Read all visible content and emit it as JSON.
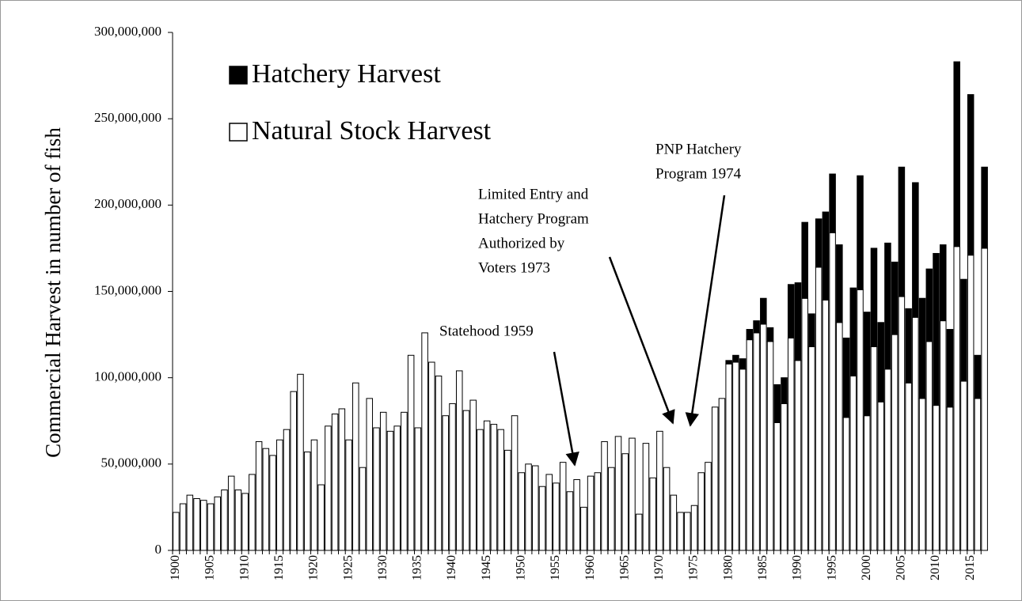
{
  "chart_data": {
    "type": "stacked_bar",
    "y_label": "Commercial  Harvest  in number of fish",
    "categories": [
      "1900",
      null,
      null,
      null,
      null,
      "1905",
      null,
      null,
      null,
      null,
      "1910",
      null,
      null,
      null,
      null,
      "1915",
      null,
      null,
      null,
      null,
      "1920",
      null,
      null,
      null,
      null,
      "1925",
      null,
      null,
      null,
      null,
      "1930",
      null,
      null,
      null,
      null,
      "1935",
      null,
      null,
      null,
      null,
      "1940",
      null,
      null,
      null,
      null,
      "1945",
      null,
      null,
      null,
      null,
      "1950",
      null,
      null,
      null,
      null,
      "1955",
      null,
      null,
      null,
      null,
      "1960",
      null,
      null,
      null,
      null,
      "1965",
      null,
      null,
      null,
      null,
      "1970",
      null,
      null,
      null,
      null,
      "1975",
      null,
      null,
      null,
      null,
      "1980",
      null,
      null,
      null,
      null,
      "1985",
      null,
      null,
      null,
      null,
      "1990",
      null,
      null,
      null,
      null,
      "1995",
      null,
      null,
      null,
      null,
      "2000",
      null,
      null,
      null,
      null,
      "2005",
      null,
      null,
      null,
      null,
      "2010",
      null,
      null,
      null,
      null,
      "2015",
      null,
      null
    ],
    "series": [
      {
        "name": "Natural Stock Harvest",
        "color": "#ffffff",
        "values": [
          22000000,
          27000000,
          32000000,
          30000000,
          29000000,
          27000000,
          31000000,
          35000000,
          43000000,
          35000000,
          33000000,
          44000000,
          63000000,
          59000000,
          55000000,
          64000000,
          70000000,
          92000000,
          102000000,
          57000000,
          64000000,
          38000000,
          72000000,
          79000000,
          82000000,
          64000000,
          97000000,
          48000000,
          88000000,
          71000000,
          80000000,
          69000000,
          72000000,
          80000000,
          113000000,
          71000000,
          126000000,
          109000000,
          101000000,
          78000000,
          85000000,
          104000000,
          81000000,
          87000000,
          70000000,
          75000000,
          73000000,
          70000000,
          58000000,
          78000000,
          45000000,
          50000000,
          49000000,
          37000000,
          44000000,
          39000000,
          51000000,
          34000000,
          41000000,
          25000000,
          43000000,
          45000000,
          63000000,
          48000000,
          66000000,
          56000000,
          65000000,
          21000000,
          62000000,
          42000000,
          69000000,
          48000000,
          32000000,
          22000000,
          22000000,
          26000000,
          45000000,
          51000000,
          83000000,
          88000000,
          108000000,
          109000000,
          105000000,
          122000000,
          126000000,
          131000000,
          121000000,
          74000000,
          85000000,
          123000000,
          110000000,
          146000000,
          118000000,
          164000000,
          145000000,
          184000000,
          132000000,
          77000000,
          101000000,
          151000000,
          78000000,
          118000000,
          86000000,
          105000000,
          125000000,
          147000000,
          97000000,
          135000000,
          88000000,
          121000000,
          84000000,
          133000000,
          83000000,
          176000000,
          98000000,
          171000000,
          88000000,
          175000000
        ]
      },
      {
        "name": "Hatchery Harvest",
        "color": "#000000",
        "values": [
          0,
          0,
          0,
          0,
          0,
          0,
          0,
          0,
          0,
          0,
          0,
          0,
          0,
          0,
          0,
          0,
          0,
          0,
          0,
          0,
          0,
          0,
          0,
          0,
          0,
          0,
          0,
          0,
          0,
          0,
          0,
          0,
          0,
          0,
          0,
          0,
          0,
          0,
          0,
          0,
          0,
          0,
          0,
          0,
          0,
          0,
          0,
          0,
          0,
          0,
          0,
          0,
          0,
          0,
          0,
          0,
          0,
          0,
          0,
          0,
          0,
          0,
          0,
          0,
          0,
          0,
          0,
          0,
          0,
          0,
          0,
          0,
          0,
          0,
          0,
          0,
          0,
          0,
          0,
          0,
          2000000,
          4000000,
          6000000,
          6000000,
          7000000,
          15000000,
          8000000,
          22000000,
          15000000,
          31000000,
          45000000,
          44000000,
          19000000,
          28000000,
          51000000,
          34000000,
          45000000,
          46000000,
          51000000,
          66000000,
          60000000,
          57000000,
          46000000,
          73000000,
          42000000,
          75000000,
          43000000,
          78000000,
          58000000,
          42000000,
          88000000,
          44000000,
          45000000,
          107000000,
          59000000,
          93000000,
          25000000,
          47000000
        ]
      }
    ],
    "ylim": [
      0,
      300000000
    ],
    "yticks": [
      0,
      {
        "value": 50000000,
        "label": "50,000,000"
      },
      {
        "value": 100000000,
        "label": "100,000,000"
      },
      {
        "value": 150000000,
        "label": "150,000,000"
      },
      {
        "value": 200000000,
        "label": "200,000,000"
      },
      {
        "value": 250000000,
        "label": "250,000,000"
      },
      {
        "value": 300000000,
        "label": "300,000,000"
      }
    ],
    "legend": "upper left",
    "annotations": [
      {
        "lines": [
          "Statehood 1959"
        ]
      },
      {
        "lines": [
          "Limited Entry and",
          "Hatchery Program",
          "Authorized by",
          "Voters 1973"
        ]
      },
      {
        "lines": [
          "PNP Hatchery",
          "Program 1974"
        ]
      }
    ]
  }
}
